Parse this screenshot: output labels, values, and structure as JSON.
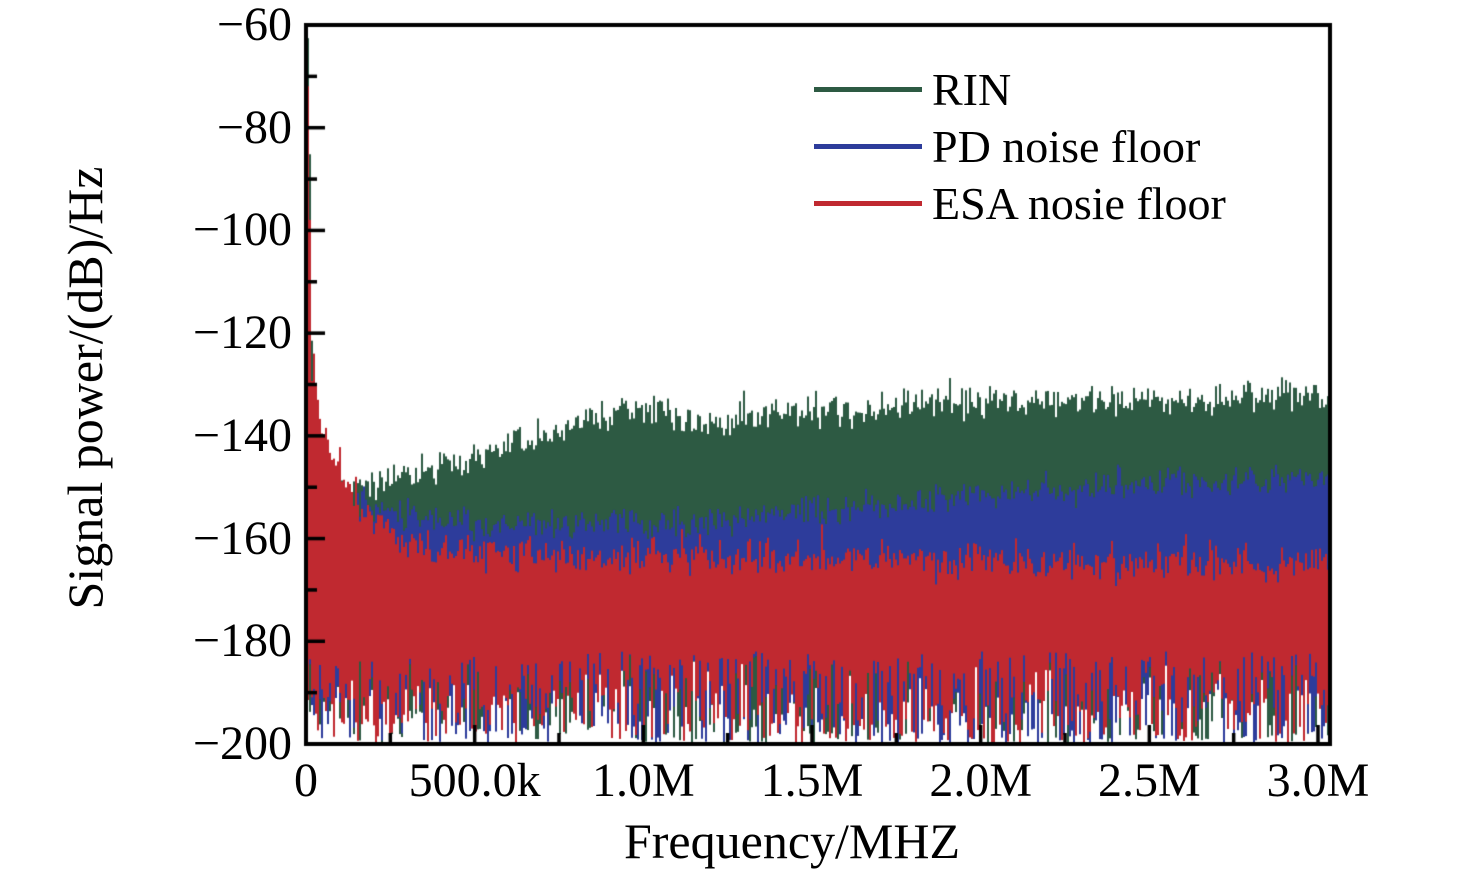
{
  "figure": {
    "background": "#ffffff",
    "frame_color": "#000000",
    "text_color": "#000000"
  },
  "axes": {
    "y_title": "Signal power/(dB)/Hz",
    "x_title": "Frequency/MHZ"
  },
  "legend": {
    "items": [
      {
        "label": "RIN",
        "color": "#2d5a43"
      },
      {
        "label": "PD noise floor",
        "color": "#2d3c9b"
      },
      {
        "label": "ESA nosie floor",
        "color": "#c02930"
      }
    ]
  },
  "chart_data": {
    "type": "line",
    "title": "",
    "xlabel": "Frequency/MHZ",
    "ylabel": "Signal power/(dB)/Hz",
    "xlim_hz": [
      0,
      3036000
    ],
    "ylim_db": [
      -200,
      -60
    ],
    "grid": false,
    "legend_position": "top-right-inside",
    "x_ticks": [
      {
        "value_hz": 0,
        "label": "0"
      },
      {
        "value_hz": 500000,
        "label": "500.0k"
      },
      {
        "value_hz": 1000000,
        "label": "1.0M"
      },
      {
        "value_hz": 1500000,
        "label": "1.5M"
      },
      {
        "value_hz": 2000000,
        "label": "2.0M"
      },
      {
        "value_hz": 2500000,
        "label": "2.5M"
      },
      {
        "value_hz": 3000000,
        "label": "3.0M"
      }
    ],
    "x_minor_ticks_hz": [
      250000,
      750000,
      1250000,
      1750000,
      2250000,
      2750000
    ],
    "y_ticks": [
      {
        "value_db": -60,
        "label": "−60"
      },
      {
        "value_db": -80,
        "label": "−80"
      },
      {
        "value_db": -100,
        "label": "−100"
      },
      {
        "value_db": -120,
        "label": "−120"
      },
      {
        "value_db": -140,
        "label": "−140"
      },
      {
        "value_db": -160,
        "label": "−160"
      },
      {
        "value_db": -180,
        "label": "−180"
      },
      {
        "value_db": -200,
        "label": "−200"
      }
    ],
    "y_minor_ticks_db": [
      -70,
      -90,
      -110,
      -130,
      -150,
      -170,
      -190
    ],
    "series_note": "Noisy spectrum-analyzer traces rendered as dense vertical noise bands; upper_envelope is the approximate top edge of each band (MHz, dB) read from the plot; each trace extends noisily downward into the lower_band.",
    "series": [
      {
        "name": "RIN",
        "color": "#2d5a43",
        "draw_order": 1,
        "upper_envelope_mhz_db": [
          [
            0,
            -62
          ],
          [
            0.006,
            -64
          ],
          [
            0.014,
            -122
          ],
          [
            0.025,
            -140
          ],
          [
            0.04,
            -146
          ],
          [
            0.06,
            -148.5
          ],
          [
            0.1,
            -150
          ],
          [
            0.2,
            -150
          ],
          [
            0.3,
            -148
          ],
          [
            0.4,
            -146
          ],
          [
            0.5,
            -144.5
          ],
          [
            0.6,
            -142.5
          ],
          [
            0.7,
            -140.5
          ],
          [
            0.8,
            -138
          ],
          [
            0.9,
            -136
          ],
          [
            1.0,
            -134.5
          ],
          [
            1.1,
            -137
          ],
          [
            1.2,
            -137.5
          ],
          [
            1.35,
            -136
          ],
          [
            1.5,
            -135.5
          ],
          [
            1.65,
            -135.5
          ],
          [
            1.8,
            -134.5
          ],
          [
            2.0,
            -134
          ],
          [
            2.2,
            -133.5
          ],
          [
            2.4,
            -133
          ],
          [
            2.7,
            -132.5
          ],
          [
            3.05,
            -132
          ]
        ],
        "top_noise_sigma_db": 1.5,
        "spike_db": 3.5,
        "lower_band_db": [
          -200,
          -182
        ]
      },
      {
        "name": "PD noise floor",
        "color": "#2d3c9b",
        "draw_order": 2,
        "upper_envelope_mhz_db": [
          [
            0,
            -90
          ],
          [
            0.006,
            -95
          ],
          [
            0.014,
            -128
          ],
          [
            0.03,
            -147
          ],
          [
            0.06,
            -150.5
          ],
          [
            0.1,
            -152.5
          ],
          [
            0.2,
            -154.5
          ],
          [
            0.3,
            -155.5
          ],
          [
            0.5,
            -157
          ],
          [
            0.8,
            -157.5
          ],
          [
            1.1,
            -157
          ],
          [
            1.3,
            -156
          ],
          [
            1.5,
            -154.5
          ],
          [
            1.7,
            -153.5
          ],
          [
            1.9,
            -152.5
          ],
          [
            2.1,
            -151
          ],
          [
            2.3,
            -150.5
          ],
          [
            2.5,
            -149.5
          ],
          [
            2.7,
            -149
          ],
          [
            2.9,
            -148.5
          ],
          [
            3.05,
            -148
          ]
        ],
        "top_noise_sigma_db": 1.5,
        "spike_db": 3.5,
        "lower_band_db": [
          -200,
          -182
        ]
      },
      {
        "name": "ESA nosie floor",
        "color": "#c02930",
        "draw_order": 3,
        "upper_envelope_mhz_db": [
          [
            0,
            -68
          ],
          [
            0.006,
            -75
          ],
          [
            0.012,
            -125
          ],
          [
            0.018,
            -130
          ],
          [
            0.03,
            -132
          ],
          [
            0.05,
            -139
          ],
          [
            0.07,
            -143
          ],
          [
            0.09,
            -146
          ],
          [
            0.12,
            -150
          ],
          [
            0.15,
            -153
          ],
          [
            0.2,
            -157
          ],
          [
            0.25,
            -159
          ],
          [
            0.3,
            -160.5
          ],
          [
            0.4,
            -161.8
          ],
          [
            0.5,
            -162.5
          ],
          [
            0.7,
            -163
          ],
          [
            1.0,
            -163.5
          ],
          [
            1.5,
            -164
          ],
          [
            2.0,
            -164.5
          ],
          [
            3.05,
            -165
          ]
        ],
        "top_noise_sigma_db": 1.8,
        "spike_db": 5,
        "lower_band_db": [
          -200,
          -182
        ]
      }
    ]
  }
}
